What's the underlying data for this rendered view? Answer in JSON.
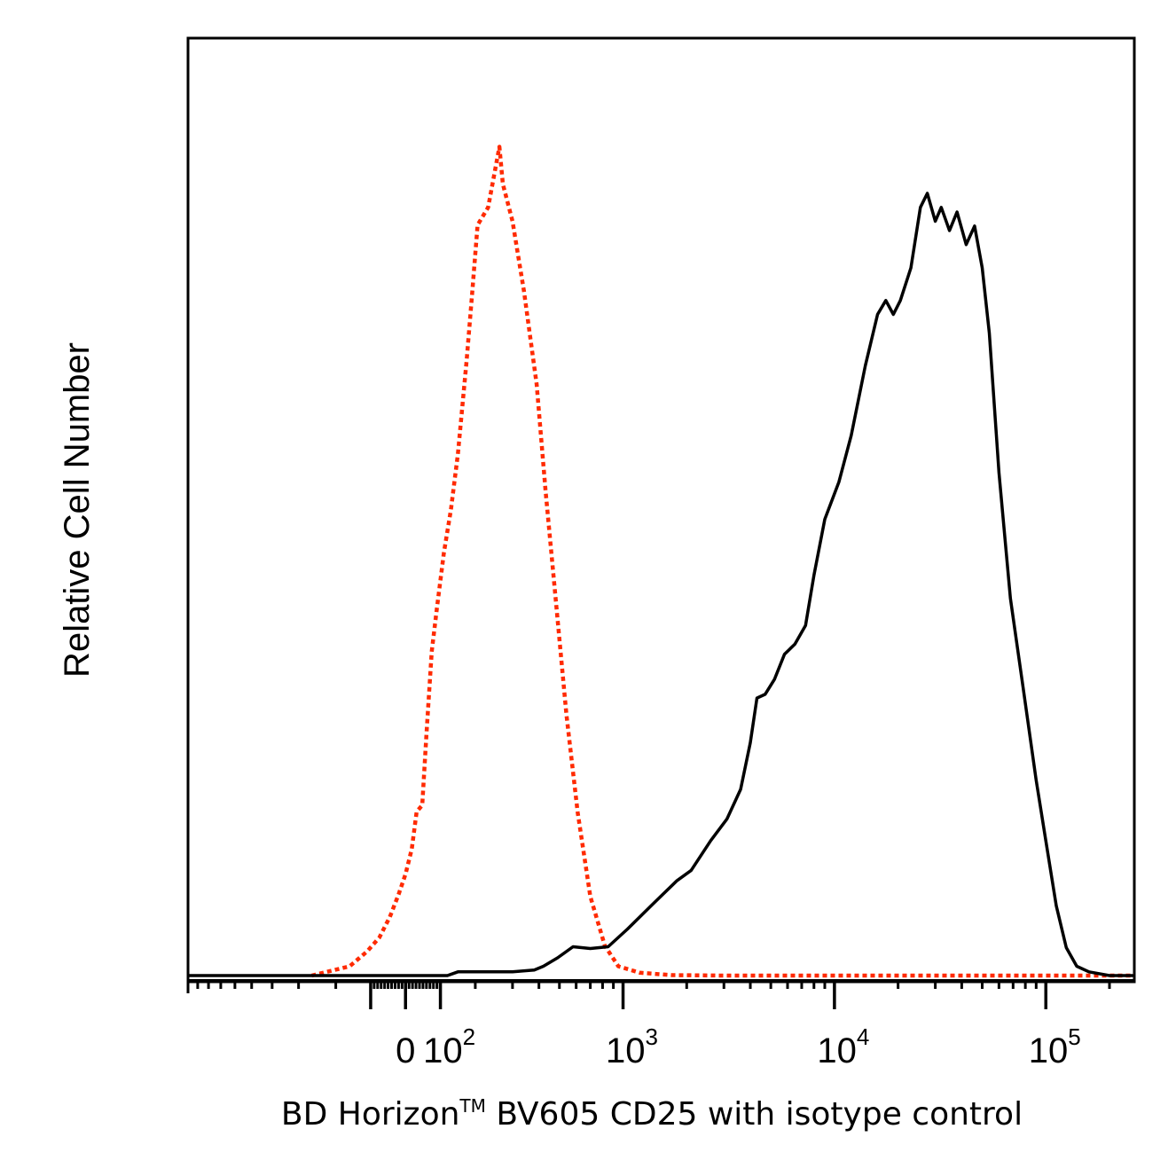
{
  "chart_data": {
    "type": "line",
    "title": "",
    "xlabel": "BD Horizon™ BV605 CD25 with isotype control",
    "xlabel_parts": {
      "before": "BD Horizon",
      "superscript": "TM",
      "after": " BV605 CD25 with isotype control"
    },
    "ylabel": "Relative Cell Number",
    "x_scale": "biexponential",
    "x_ticks": [
      {
        "value": 0,
        "base": "0",
        "exp": ""
      },
      {
        "value": 100,
        "base": "10",
        "exp": "2"
      },
      {
        "value": 1000,
        "base": "10",
        "exp": "3"
      },
      {
        "value": 10000,
        "base": "10",
        "exp": "4"
      },
      {
        "value": 100000,
        "base": "10",
        "exp": "5"
      }
    ],
    "xlim": [
      -1000,
      262144
    ],
    "ylim": [
      0,
      100
    ],
    "grid": false,
    "legend": "none",
    "series": [
      {
        "style": "dotted",
        "color": "#ff2a00",
        "points": [
          [
            -260,
            0
          ],
          [
            -160,
            1
          ],
          [
            -110,
            2.6
          ],
          [
            -75,
            4.1
          ],
          [
            -45,
            6.3
          ],
          [
            -20,
            8.7
          ],
          [
            0,
            10.9
          ],
          [
            18,
            13.6
          ],
          [
            32,
            17.6
          ],
          [
            48,
            18.3
          ],
          [
            60,
            26
          ],
          [
            75,
            34.8
          ],
          [
            90,
            39.5
          ],
          [
            110,
            45.4
          ],
          [
            130,
            50
          ],
          [
            150,
            56
          ],
          [
            175,
            66
          ],
          [
            190,
            72.8
          ],
          [
            205,
            80.6
          ],
          [
            230,
            82.5
          ],
          [
            260,
            89
          ],
          [
            270,
            85
          ],
          [
            300,
            81
          ],
          [
            340,
            73.5
          ],
          [
            390,
            63.5
          ],
          [
            430,
            52
          ],
          [
            480,
            40.5
          ],
          [
            540,
            28
          ],
          [
            610,
            17.5
          ],
          [
            700,
            8.5
          ],
          [
            820,
            3.2
          ],
          [
            950,
            1
          ],
          [
            1200,
            0.3
          ],
          [
            1700,
            0.05
          ],
          [
            3000,
            0
          ],
          [
            262144,
            0
          ]
        ]
      },
      {
        "style": "solid",
        "color": "#000000",
        "points": [
          [
            -1000,
            0
          ],
          [
            120,
            0
          ],
          [
            150,
            0.4
          ],
          [
            300,
            0.4
          ],
          [
            380,
            0.6
          ],
          [
            420,
            1
          ],
          [
            490,
            1.9
          ],
          [
            580,
            3.1
          ],
          [
            700,
            2.9
          ],
          [
            850,
            3.1
          ],
          [
            1050,
            5
          ],
          [
            1400,
            7.8
          ],
          [
            1800,
            10.2
          ],
          [
            2100,
            11.3
          ],
          [
            2600,
            14.5
          ],
          [
            3100,
            16.8
          ],
          [
            3600,
            20
          ],
          [
            4000,
            25
          ],
          [
            4300,
            29.8
          ],
          [
            4700,
            30.2
          ],
          [
            5200,
            31.8
          ],
          [
            5800,
            34.5
          ],
          [
            6500,
            35.6
          ],
          [
            7300,
            37.6
          ],
          [
            8000,
            43
          ],
          [
            9000,
            49
          ],
          [
            10500,
            53
          ],
          [
            12000,
            58
          ],
          [
            14000,
            65.5
          ],
          [
            16000,
            71
          ],
          [
            17500,
            72.5
          ],
          [
            19000,
            71
          ],
          [
            20500,
            72.5
          ],
          [
            23000,
            76
          ],
          [
            25500,
            82.5
          ],
          [
            27500,
            84
          ],
          [
            30000,
            81
          ],
          [
            32000,
            82.5
          ],
          [
            35000,
            80
          ],
          [
            38000,
            82
          ],
          [
            42000,
            78.5
          ],
          [
            46000,
            80.5
          ],
          [
            50000,
            76
          ],
          [
            54000,
            69
          ],
          [
            60000,
            54
          ],
          [
            68000,
            40.5
          ],
          [
            78000,
            31
          ],
          [
            90000,
            21
          ],
          [
            100000,
            14.5
          ],
          [
            112000,
            7.5
          ],
          [
            125000,
            3
          ],
          [
            140000,
            1
          ],
          [
            160000,
            0.4
          ],
          [
            200000,
            0
          ],
          [
            262144,
            0
          ]
        ]
      }
    ]
  }
}
